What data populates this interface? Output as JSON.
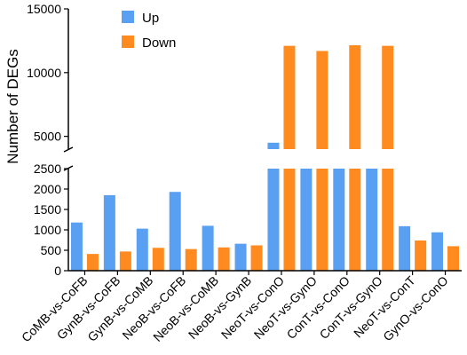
{
  "chart_data": {
    "type": "bar",
    "ylabel": "Number of DEGs",
    "categories": [
      "CoMB-vs-CoFB",
      "GynB-vs-CoFB",
      "GynB-vs-CoMB",
      "NeoB-vs-CoFB",
      "NeoB-vs-CoMB",
      "NeoB-vs-GynB",
      "NeoT-vs-ConO",
      "NeoT-vs-GynO",
      "ConT-vs-ConO",
      "ConT-vs-GynO",
      "NeoT-vs-ConT",
      "GynO-vs-ConO"
    ],
    "series": [
      {
        "name": "Up",
        "color": "#5aa0f2",
        "values": [
          1180,
          1850,
          1030,
          1930,
          1100,
          660,
          4500,
          3950,
          3800,
          3750,
          1090,
          940
        ]
      },
      {
        "name": "Down",
        "color": "#ff8a1f",
        "values": [
          410,
          470,
          560,
          530,
          570,
          620,
          12100,
          11700,
          12150,
          12100,
          740,
          600
        ]
      }
    ],
    "y_axis_broken": true,
    "ylim_lower": [
      0,
      2500
    ],
    "ylim_upper": [
      4000,
      15000
    ],
    "yticks_lower": [
      "0",
      "500",
      "1000",
      "1500",
      "2000",
      "2500"
    ],
    "yticks_upper": [
      "5000",
      "10000",
      "15000"
    ],
    "legend_position": "top-left",
    "grid": false
  }
}
